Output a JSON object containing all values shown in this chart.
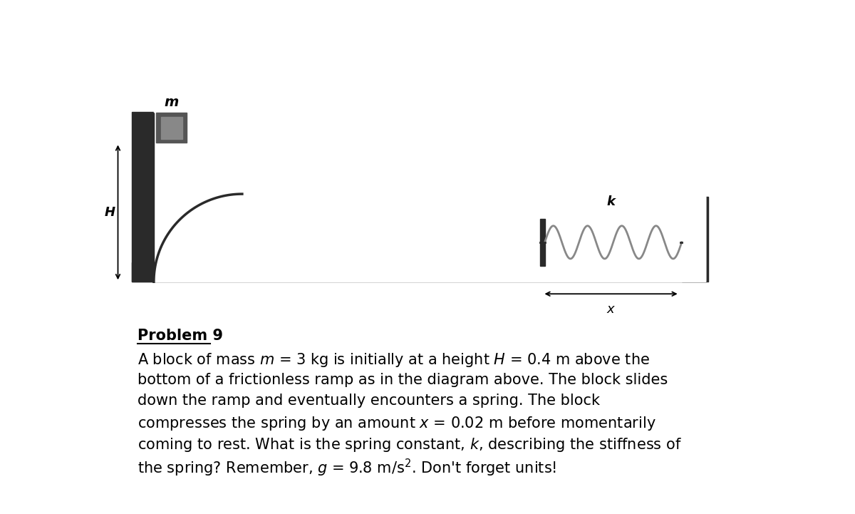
{
  "bg_color": "#ffffff",
  "ramp_color": "#2a2a2a",
  "block_color": "#555555",
  "block_light": "#888888",
  "spring_color": "#888888",
  "title": "Problem 9",
  "label_m": "m",
  "label_H": "H",
  "label_k": "k",
  "fontsize_body": 15,
  "fontsize_title": 15,
  "fontsize_label": 13
}
